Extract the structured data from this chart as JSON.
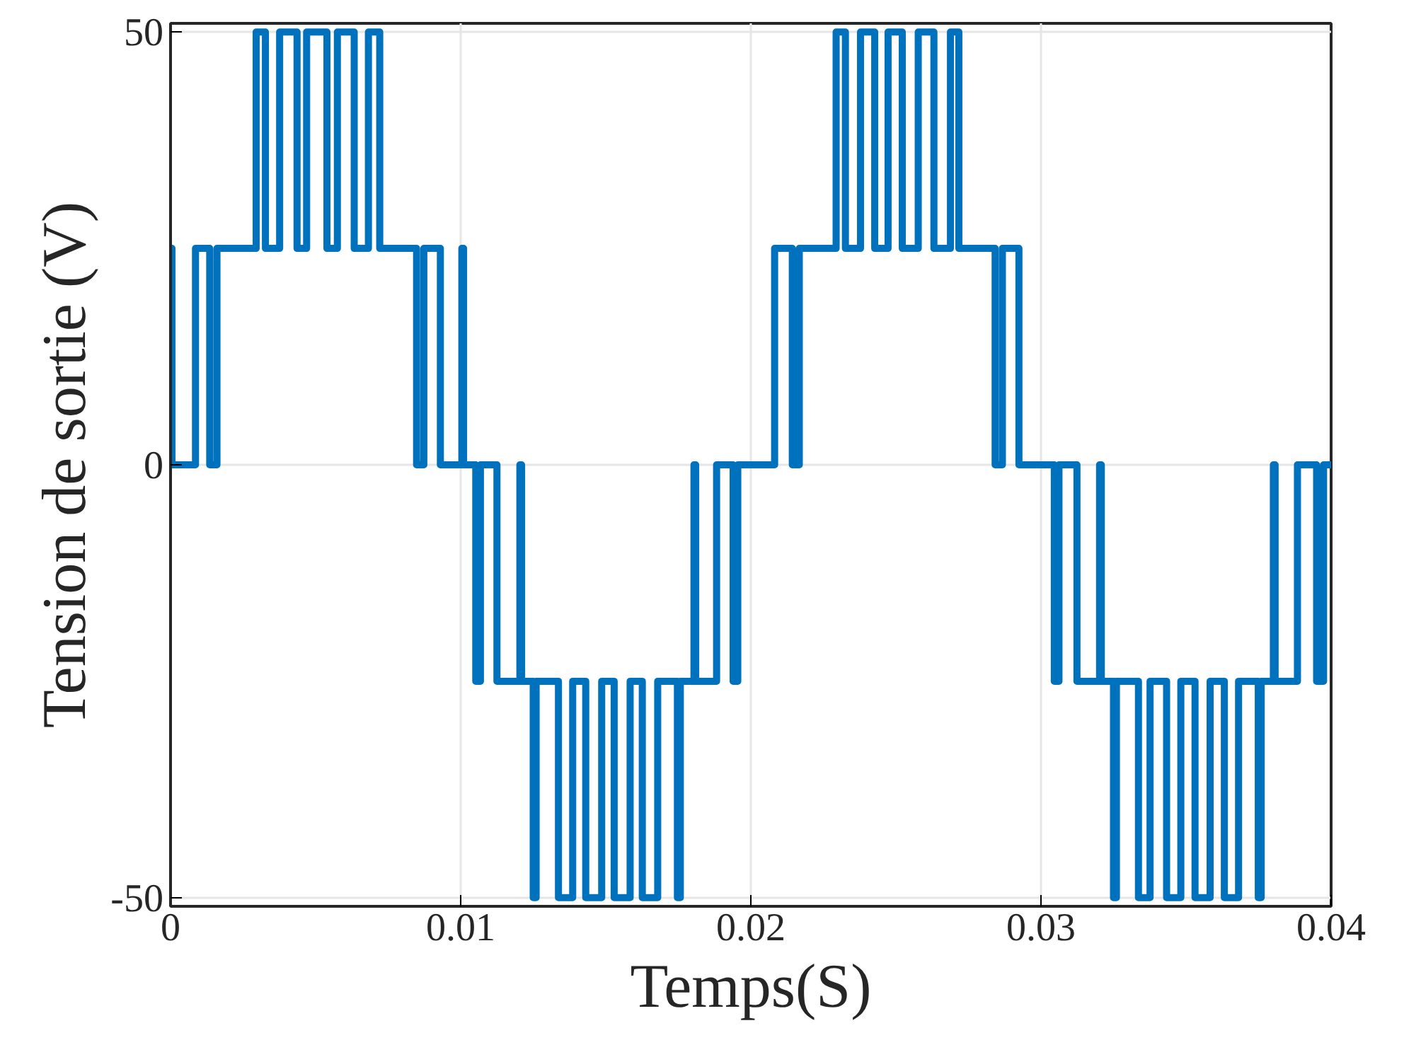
{
  "chart_data": {
    "type": "step",
    "xlabel": "Temps(S)",
    "ylabel": "Tension de sortie (V)",
    "xlim": [
      0,
      0.04
    ],
    "ylim": [
      -51,
      51
    ],
    "xticks": [
      0,
      0.01,
      0.02,
      0.03,
      0.04
    ],
    "yticks": [
      -50,
      0,
      50
    ],
    "grid": true,
    "series": [
      {
        "color": "#0072bd",
        "line_style": "solid",
        "x": [
          0,
          5e-05,
          0.00086,
          0.00135,
          0.0016,
          0.00295,
          0.00327,
          0.00376,
          0.00436,
          0.00469,
          0.00539,
          0.00575,
          0.00633,
          0.00682,
          0.00721,
          0.00848,
          0.00873,
          0.0093,
          0.01004,
          0.0101,
          0.01052,
          0.01068,
          0.01125,
          0.01204,
          0.0121,
          0.0125,
          0.0126,
          0.01337,
          0.01386,
          0.01431,
          0.01486,
          0.01529,
          0.01584,
          0.01626,
          0.01679,
          0.01747,
          0.01757,
          0.01804,
          0.0181,
          0.01882,
          0.01939,
          0.01955,
          0.02082,
          0.02143,
          0.02167,
          0.02294,
          0.02326,
          0.02378,
          0.02427,
          0.02473,
          0.02522,
          0.02577,
          0.02631,
          0.02688,
          0.02717,
          0.02842,
          0.02867,
          0.02924,
          0.03046,
          0.03062,
          0.03124,
          0.03202,
          0.03208,
          0.0325,
          0.0326,
          0.03336,
          0.03376,
          0.03433,
          0.03482,
          0.03531,
          0.03583,
          0.03632,
          0.03681,
          0.03749,
          0.03759,
          0.03801,
          0.03807,
          0.03884,
          0.0395,
          0.03974,
          0.04
        ],
        "values": [
          25,
          0,
          25,
          0,
          25,
          50,
          25,
          50,
          25,
          50,
          25,
          50,
          25,
          50,
          25,
          0,
          25,
          0,
          25,
          0,
          -25,
          0,
          -25,
          0,
          -25,
          -50,
          -25,
          -50,
          -25,
          -50,
          -25,
          -50,
          -25,
          -50,
          -25,
          -50,
          -25,
          0,
          -25,
          0,
          -25,
          0,
          25,
          0,
          25,
          50,
          25,
          50,
          25,
          50,
          25,
          50,
          25,
          50,
          25,
          0,
          25,
          0,
          -25,
          0,
          -25,
          0,
          -25,
          -50,
          -25,
          -50,
          -25,
          -50,
          -25,
          -50,
          -25,
          -50,
          -25,
          -50,
          -25,
          0,
          -25,
          0,
          -25,
          0,
          0
        ]
      }
    ]
  }
}
